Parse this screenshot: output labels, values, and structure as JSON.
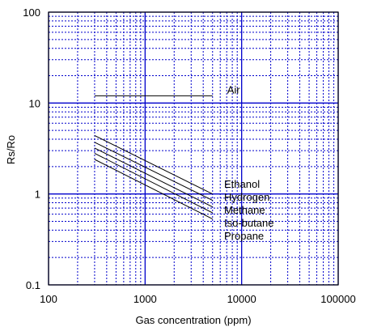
{
  "chart_data": {
    "type": "line",
    "title": "",
    "xlabel": "Gas concentration (ppm)",
    "ylabel": "Rs/Ro",
    "x_scale": "log",
    "y_scale": "log",
    "xlim": [
      100,
      100000
    ],
    "ylim": [
      0.1,
      100
    ],
    "x_ticks": [
      {
        "value": 100,
        "label": "100"
      },
      {
        "value": 1000,
        "label": "1000"
      },
      {
        "value": 10000,
        "label": "10000"
      },
      {
        "value": 100000,
        "label": "100000"
      }
    ],
    "y_ticks": [
      {
        "value": 0.1,
        "label": "0.1"
      },
      {
        "value": 1,
        "label": "1"
      },
      {
        "value": 10,
        "label": "10"
      },
      {
        "value": 100,
        "label": "100"
      }
    ],
    "grid": true,
    "series": [
      {
        "name": "Air",
        "x": [
          300,
          5000
        ],
        "y": [
          12,
          12
        ]
      },
      {
        "name": "Ethanol",
        "x": [
          300,
          5000
        ],
        "y": [
          4.4,
          1.0
        ]
      },
      {
        "name": "Hydrogen",
        "x": [
          300,
          5000
        ],
        "y": [
          3.7,
          0.85
        ]
      },
      {
        "name": "Methane",
        "x": [
          300,
          5000
        ],
        "y": [
          3.2,
          0.72
        ]
      },
      {
        "name": "Iso-butane",
        "x": [
          300,
          5000
        ],
        "y": [
          2.8,
          0.62
        ]
      },
      {
        "name": "Propane",
        "x": [
          300,
          5000
        ],
        "y": [
          2.4,
          0.53
        ]
      }
    ],
    "colors": {
      "axis": "#000000",
      "grid": "#0000cc",
      "series": "#000000"
    }
  }
}
